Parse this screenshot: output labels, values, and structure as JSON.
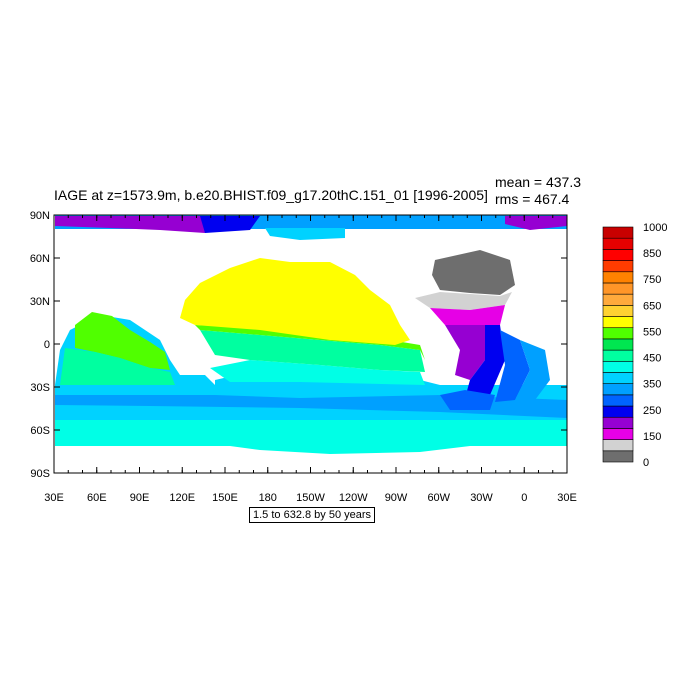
{
  "title": "IAGE at z=1573.9m, b.e20.BHIST.f09_g17.20thC.151_01 [1996-2005]",
  "stats": {
    "mean": "mean = 437.3",
    "rms": "rms = 467.4"
  },
  "contour_info": "1.5 to 632.8 by 50 years",
  "axes": {
    "lat_labels": [
      "90N",
      "60N",
      "30N",
      "0",
      "30S",
      "60S",
      "90S"
    ],
    "lon_labels": [
      "30E",
      "60E",
      "90E",
      "120E",
      "150E",
      "180",
      "150W",
      "120W",
      "90W",
      "60W",
      "30W",
      "0",
      "30E"
    ]
  },
  "colorbar": {
    "colors": [
      "#6e6e6e",
      "#d2d2d2",
      "#e600e6",
      "#9600d2",
      "#0000f0",
      "#0064ff",
      "#00a0ff",
      "#00d2ff",
      "#00ffe6",
      "#00ffa0",
      "#00e650",
      "#50ff00",
      "#ffff00",
      "#ffd232",
      "#ffaa3c",
      "#ff9628",
      "#ff8200",
      "#ff3c00",
      "#ff0000",
      "#e60000",
      "#c80000"
    ],
    "labels": [
      "0",
      "150",
      "250",
      "350",
      "450",
      "550",
      "650",
      "750",
      "850",
      "1000"
    ]
  }
}
